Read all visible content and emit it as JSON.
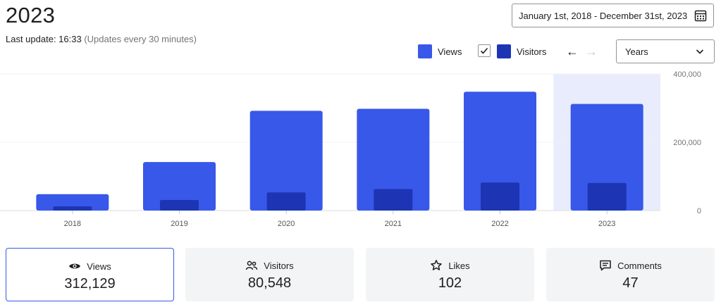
{
  "header": {
    "title": "2023",
    "last_update": "Last update: 16:33",
    "update_note": "(Updates every 30 minutes)"
  },
  "date_range": {
    "label": "January 1st, 2018 - December 31st, 2023",
    "icon": "calendar-icon"
  },
  "legend": {
    "views_label": "Views",
    "visitors_label": "Visitors",
    "visitors_checked": true,
    "views_color": "#3858e9",
    "visitors_color": "#1d35b4"
  },
  "navigation": {
    "prev_arrow": "←",
    "next_arrow": "→"
  },
  "period_select": {
    "value": "Years"
  },
  "chart_data": {
    "type": "bar",
    "categories": [
      "2018",
      "2019",
      "2020",
      "2021",
      "2022",
      "2023"
    ],
    "series": [
      {
        "name": "Views",
        "color": "#3858e9",
        "values": [
          48000,
          142000,
          292000,
          298000,
          348000,
          312129
        ]
      },
      {
        "name": "Visitors",
        "color": "#1d35b4",
        "values": [
          12000,
          31000,
          53000,
          63000,
          82000,
          80548
        ]
      }
    ],
    "highlighted_category": "2023",
    "highlight_color": "#e9ecfc",
    "ylim": [
      0,
      400000
    ],
    "y_ticks": [
      0,
      200000,
      400000
    ],
    "y_tick_labels": [
      "0",
      "200,000",
      "400,000"
    ],
    "grid": true
  },
  "stats": [
    {
      "key": "views",
      "label": "Views",
      "value": "312,129",
      "icon": "eye-icon",
      "active": true
    },
    {
      "key": "visitors",
      "label": "Visitors",
      "value": "80,548",
      "icon": "people-icon",
      "active": false
    },
    {
      "key": "likes",
      "label": "Likes",
      "value": "102",
      "icon": "star-icon",
      "active": false
    },
    {
      "key": "comments",
      "label": "Comments",
      "value": "47",
      "icon": "comment-icon",
      "active": false
    }
  ]
}
